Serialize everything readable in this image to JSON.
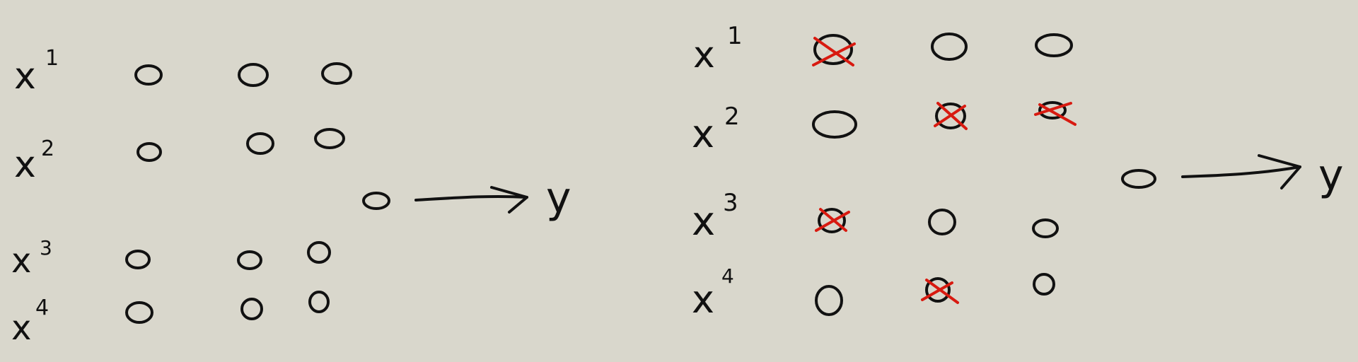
{
  "left_network": {
    "labels": [
      {
        "base": "x",
        "sup": "1"
      },
      {
        "base": "x",
        "sup": "2"
      },
      {
        "base": "x",
        "sup": "3"
      },
      {
        "base": "x",
        "sup": "4"
      }
    ],
    "output": "y"
  },
  "right_network": {
    "labels": [
      {
        "base": "x",
        "sup": "1"
      },
      {
        "base": "x",
        "sup": "2"
      },
      {
        "base": "x",
        "sup": "3"
      },
      {
        "base": "x",
        "sup": "4"
      }
    ],
    "output": "y",
    "crossed_nodes": [
      [
        1,
        0
      ],
      [
        2,
        1
      ],
      [
        3,
        1
      ],
      [
        1,
        2
      ],
      [
        2,
        3
      ]
    ]
  },
  "colors": {
    "background": "#d9d7cc",
    "ink": "#111111",
    "cross": "#d81a10"
  }
}
